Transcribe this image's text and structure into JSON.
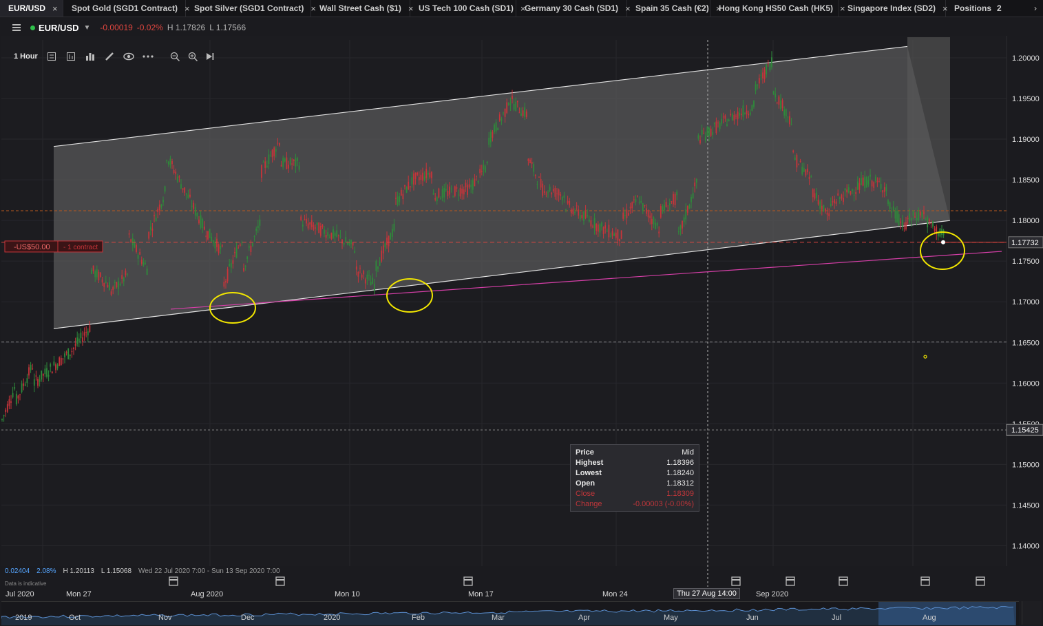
{
  "tabs": [
    {
      "label": "EUR/USD",
      "active": true
    },
    {
      "label": "Spot Gold (SGD1 Contract)"
    },
    {
      "label": "Spot Silver (SGD1 Contract)"
    },
    {
      "label": "Wall Street Cash ($1)"
    },
    {
      "label": "US Tech 100 Cash (SD1)"
    },
    {
      "label": "Germany 30 Cash (SD1)"
    },
    {
      "label": "Spain 35 Cash (€2)"
    },
    {
      "label": "Hong Kong HS50 Cash (HK5)"
    },
    {
      "label": "Singapore Index (SD2)"
    },
    {
      "label": "Positions"
    }
  ],
  "tab_overflow_count": "2",
  "close_glyph": "×",
  "more_glyph": "›",
  "header": {
    "symbol": "EUR/USD",
    "change": "-0.00019",
    "change_pct": "-0.02%",
    "high": "H 1.17826",
    "low": "L 1.17566"
  },
  "toolbar": {
    "interval": "1 Hour"
  },
  "icons": [
    "hamburger-icon",
    "candle-type-icon",
    "bar-chart-icon",
    "indicator-icon",
    "pencil-icon",
    "eye-icon",
    "more-icon",
    "zoom-out-icon",
    "zoom-in-icon",
    "play-end-icon",
    "calendar-icon"
  ],
  "order_line": {
    "pnl": "-US$50.00",
    "contracts": "- 1 contract"
  },
  "price_badges": {
    "current": "1.17732",
    "crosshair": "1.15425"
  },
  "tooltip": {
    "header_left": "Price",
    "header_right": "Mid",
    "rows": [
      {
        "k": "Highest",
        "v": "1.18396"
      },
      {
        "k": "Lowest",
        "v": "1.18240"
      },
      {
        "k": "Open",
        "v": "1.18312"
      },
      {
        "k": "Close",
        "v": "1.18309"
      },
      {
        "k": "Change",
        "v": "-0.00003 (-0.00%)"
      }
    ]
  },
  "stats": {
    "v1": "0.02404",
    "v2": "2.08%",
    "high": "H 1.20113",
    "low": "L 1.15068",
    "range": "Wed 22 Jul 2020 7:00 - Sun 13 Sep 2020 7:00",
    "note": "Data is indicative"
  },
  "x_labels": [
    "Jul 2020",
    "Mon 27",
    "Aug 2020",
    "Mon 10",
    "Mon 17",
    "Mon 24",
    "Sep 2020"
  ],
  "x_crosshair": "Thu 27 Aug 14:00",
  "navigator_labels": [
    "2019",
    "Oct",
    "Nov",
    "Dec",
    "2020",
    "Feb",
    "Mar",
    "Apr",
    "May",
    "Jun",
    "Jul",
    "Aug"
  ],
  "colors": {
    "up": "#2e8b3a",
    "down": "#c8343a",
    "channel": "#5a5a5a",
    "support": "#d63fa8",
    "highlight": "#f2e600",
    "accent": "#56a6ff"
  },
  "chart_data": {
    "type": "candlestick",
    "title": "EUR/USD",
    "interval": "1 Hour",
    "y_ticks": [
      "1.20000",
      "1.19500",
      "1.19000",
      "1.18500",
      "1.18000",
      "1.17500",
      "1.17000",
      "1.16500",
      "1.16000",
      "1.15500",
      "1.15000",
      "1.14500",
      "1.14000"
    ],
    "ylim": [
      1.1375,
      1.2022
    ],
    "x_range": [
      "Wed 22 Jul 2020 7:00",
      "Sun 13 Sep 2020 7:00"
    ],
    "close_path": [
      [
        "2020-07-22",
        1.155
      ],
      [
        "2020-07-22",
        1.1535
      ],
      [
        "2020-07-23",
        1.1595
      ],
      [
        "2020-07-23",
        1.1575
      ],
      [
        "2020-07-24",
        1.1625
      ],
      [
        "2020-07-24",
        1.16
      ],
      [
        "2020-07-26",
        1.164
      ],
      [
        "2020-07-27",
        1.167
      ],
      [
        "2020-07-27",
        1.174
      ],
      [
        "2020-07-28",
        1.172
      ],
      [
        "2020-07-28",
        1.171
      ],
      [
        "2020-07-29",
        1.1735
      ],
      [
        "2020-07-29",
        1.178
      ],
      [
        "2020-07-30",
        1.174
      ],
      [
        "2020-07-30",
        1.178
      ],
      [
        "2020-07-31",
        1.184
      ],
      [
        "2020-07-31",
        1.1905
      ],
      [
        "2020-07-31",
        1.188
      ],
      [
        "2020-08-02",
        1.179
      ],
      [
        "2020-08-03",
        1.176
      ],
      [
        "2020-08-03",
        1.172
      ],
      [
        "2020-08-04",
        1.178
      ],
      [
        "2020-08-04",
        1.174
      ],
      [
        "2020-08-05",
        1.18
      ],
      [
        "2020-08-05",
        1.186
      ],
      [
        "2020-08-06",
        1.19
      ],
      [
        "2020-08-06",
        1.187
      ],
      [
        "2020-08-07",
        1.187
      ],
      [
        "2020-08-07",
        1.18
      ],
      [
        "2020-08-09",
        1.178
      ],
      [
        "2020-08-10",
        1.1765
      ],
      [
        "2020-08-10",
        1.174
      ],
      [
        "2020-08-11",
        1.172
      ],
      [
        "2020-08-11",
        1.174
      ],
      [
        "2020-08-12",
        1.179
      ],
      [
        "2020-08-12",
        1.182
      ],
      [
        "2020-08-13",
        1.185
      ],
      [
        "2020-08-14",
        1.186
      ],
      [
        "2020-08-14",
        1.183
      ],
      [
        "2020-08-16",
        1.184
      ],
      [
        "2020-08-17",
        1.187
      ],
      [
        "2020-08-17",
        1.19
      ],
      [
        "2020-08-18",
        1.194
      ],
      [
        "2020-08-18",
        1.195
      ],
      [
        "2020-08-19",
        1.193
      ],
      [
        "2020-08-19",
        1.188
      ],
      [
        "2020-08-20",
        1.183
      ],
      [
        "2020-08-20",
        1.184
      ],
      [
        "2020-08-21",
        1.183
      ],
      [
        "2020-08-21",
        1.182
      ],
      [
        "2020-08-23",
        1.179
      ],
      [
        "2020-08-24",
        1.178
      ],
      [
        "2020-08-24",
        1.18
      ],
      [
        "2020-08-25",
        1.183
      ],
      [
        "2020-08-25",
        1.182
      ],
      [
        "2020-08-26",
        1.179
      ],
      [
        "2020-08-26",
        1.181
      ],
      [
        "2020-08-27",
        1.183
      ],
      [
        "2020-08-27",
        1.178
      ],
      [
        "2020-08-28",
        1.185
      ],
      [
        "2020-08-28",
        1.19
      ],
      [
        "2020-08-30",
        1.193
      ],
      [
        "2020-08-31",
        1.194
      ],
      [
        "2020-08-31",
        1.196
      ],
      [
        "2020-09-01",
        1.2
      ],
      [
        "2020-09-01",
        1.196
      ],
      [
        "2020-09-02",
        1.192
      ],
      [
        "2020-09-02",
        1.188
      ],
      [
        "2020-09-03",
        1.185
      ],
      [
        "2020-09-03",
        1.184
      ],
      [
        "2020-09-04",
        1.18
      ],
      [
        "2020-09-04",
        1.182
      ],
      [
        "2020-09-06",
        1.185
      ],
      [
        "2020-09-07",
        1.184
      ],
      [
        "2020-09-07",
        1.182
      ],
      [
        "2020-09-08",
        1.179
      ],
      [
        "2020-09-08",
        1.18
      ],
      [
        "2020-09-09",
        1.181
      ],
      [
        "2020-09-09",
        1.18
      ],
      [
        "2020-09-10",
        1.178
      ],
      [
        "2020-09-10",
        1.1773
      ]
    ]
  }
}
